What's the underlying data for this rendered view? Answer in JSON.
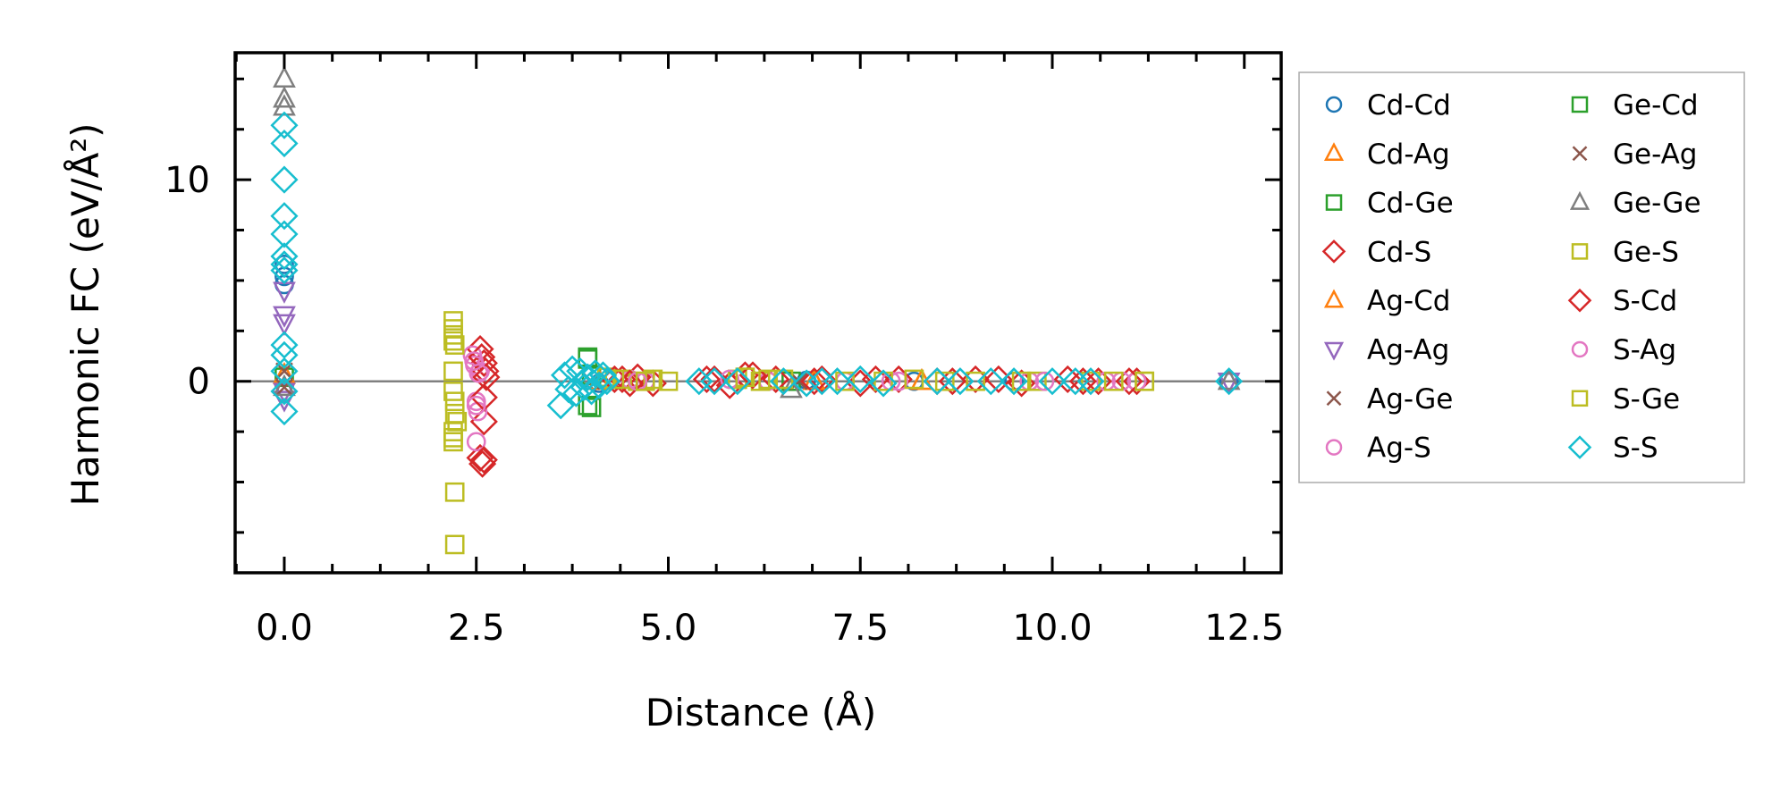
{
  "chart_data": {
    "type": "scatter",
    "title": "",
    "xlabel": "Distance (Å)",
    "ylabel": "Harmonic FC (eV/Å²)",
    "xlim": [
      -0.64,
      12.98
    ],
    "ylim": [
      -9.5,
      16.3
    ],
    "xticks": [
      0.0,
      2.5,
      5.0,
      7.5,
      10.0,
      12.5
    ],
    "xtick_labels": [
      "0.0",
      "2.5",
      "5.0",
      "7.5",
      "10.0",
      "12.5"
    ],
    "yticks": [
      0,
      10
    ],
    "ytick_labels": [
      "0",
      "10"
    ],
    "grid": false,
    "zero_line": true,
    "legend_placement": "outside-right",
    "series": [
      {
        "name": "Cd-Cd",
        "marker": "circle",
        "color": "#1f77b4",
        "x": [
          0,
          0,
          0,
          4.1,
          6.8,
          8.2,
          9.5,
          12.3
        ],
        "y": [
          5.8,
          5.2,
          4.8,
          -0.1,
          0.05,
          0,
          0,
          0
        ]
      },
      {
        "name": "Cd-Ag",
        "marker": "triangle-up",
        "color": "#ff7f0e",
        "x": [
          0,
          4.1,
          6.9,
          8.3
        ],
        "y": [
          0.3,
          0,
          0,
          0
        ]
      },
      {
        "name": "Cd-Ge",
        "marker": "square",
        "color": "#2ca02c",
        "x": [
          0,
          3.95,
          3.95,
          4.0,
          6.6
        ],
        "y": [
          0.2,
          1.2,
          -1.2,
          0.3,
          0
        ]
      },
      {
        "name": "Cd-S",
        "marker": "diamond",
        "color": "#d62728",
        "x": [
          2.55,
          2.55,
          2.58,
          2.6,
          2.6,
          2.62,
          4.4,
          4.6,
          4.8,
          5.5,
          5.8,
          6.0,
          6.4,
          7.0,
          7.5,
          8.0,
          8.5,
          9.0,
          9.6,
          10.2,
          10.6,
          11.1
        ],
        "y": [
          1.6,
          -3.8,
          -4.1,
          0.9,
          -2,
          0.5,
          0.1,
          0.2,
          -0.1,
          0.1,
          -0.2,
          0.3,
          0.1,
          0.1,
          -0.1,
          0.1,
          0,
          0.1,
          -0.1,
          0.1,
          0,
          0
        ]
      },
      {
        "name": "Ag-Cd",
        "marker": "triangle-up",
        "color": "#ff7f0e",
        "x": [
          0,
          4.1,
          6.9,
          8.3
        ],
        "y": [
          0.3,
          0,
          0,
          0
        ]
      },
      {
        "name": "Ag-Ag",
        "marker": "triangle-down",
        "color": "#9467bd",
        "x": [
          0,
          0,
          0,
          0,
          0,
          12.3
        ],
        "y": [
          4.5,
          3.3,
          2.9,
          -0.5,
          -0.9,
          0
        ]
      },
      {
        "name": "Ag-Ge",
        "marker": "x",
        "color": "#8c564b",
        "x": [
          0,
          4.0,
          6.7
        ],
        "y": [
          -0.3,
          0,
          0
        ]
      },
      {
        "name": "Ag-S",
        "marker": "circle",
        "color": "#e377c2",
        "x": [
          2.45,
          2.48,
          2.5,
          2.5,
          2.52,
          2.55,
          4.5,
          4.7,
          6.3,
          7.3,
          8.0,
          9.7,
          10.7,
          11.1
        ],
        "y": [
          1.3,
          0.8,
          -1,
          -3,
          -1.5,
          0.5,
          0.1,
          0,
          0,
          0,
          0,
          0,
          0,
          0
        ]
      },
      {
        "name": "Ge-Cd",
        "marker": "square",
        "color": "#2ca02c",
        "x": [
          3.95,
          4.0
        ],
        "y": [
          1.1,
          -1.3
        ]
      },
      {
        "name": "Ge-Ag",
        "marker": "x",
        "color": "#8c564b",
        "x": [
          0,
          6.7
        ],
        "y": [
          0.5,
          0
        ]
      },
      {
        "name": "Ge-Ge",
        "marker": "triangle-up",
        "color": "#7f7f7f",
        "x": [
          0,
          0,
          0,
          0,
          6.6,
          12.3
        ],
        "y": [
          15,
          14,
          13.6,
          -0.3,
          -0.4,
          0
        ]
      },
      {
        "name": "Ge-S",
        "marker": "square",
        "color": "#bcbd22",
        "x": [
          2.2,
          2.2,
          2.2,
          2.22,
          2.2,
          2.2,
          2.22,
          2.25,
          2.2,
          2.2,
          2.22,
          2.22,
          4.2,
          4.4,
          4.6,
          4.8,
          5.0,
          5.9,
          6.2,
          6.5,
          7.3,
          8.2,
          9.0,
          9.8,
          10.5,
          11.2
        ],
        "y": [
          3,
          2.6,
          2.3,
          1.8,
          0.5,
          -0.5,
          -1,
          -2,
          -2.5,
          -3,
          -5.5,
          -8.1,
          0.2,
          0.1,
          0,
          0.1,
          0,
          0.1,
          0,
          0.1,
          0,
          0.1,
          0,
          0,
          0,
          0
        ]
      },
      {
        "name": "S-Cd",
        "marker": "diamond",
        "color": "#d62728",
        "x": [
          2.57,
          2.6,
          2.6,
          2.63,
          4.3,
          4.5,
          5.6,
          6.1,
          6.9,
          7.7,
          8.7,
          9.3,
          10.4,
          11.0
        ],
        "y": [
          1.2,
          -0.8,
          -3.9,
          0.2,
          0.1,
          -0.1,
          0.1,
          0.3,
          0,
          0.1,
          0,
          0.1,
          0,
          0
        ]
      },
      {
        "name": "S-Ag",
        "marker": "circle",
        "color": "#e377c2",
        "x": [
          2.47,
          2.5,
          2.53,
          4.6,
          5.8,
          7.9,
          9.9,
          10.9
        ],
        "y": [
          1.0,
          -1.2,
          0.4,
          0,
          0.1,
          0,
          0,
          0
        ]
      },
      {
        "name": "S-Ge",
        "marker": "square",
        "color": "#bcbd22",
        "x": [
          2.2,
          2.22,
          2.2,
          4.3,
          4.7,
          6.0,
          6.3,
          7.8,
          8.6,
          9.6,
          10.8,
          11.2
        ],
        "y": [
          2.0,
          -1.6,
          -2.8,
          0.1,
          0,
          0.2,
          0.1,
          0,
          0,
          0,
          0,
          0
        ]
      },
      {
        "name": "S-S",
        "marker": "diamond",
        "color": "#17becf",
        "x": [
          0,
          0,
          0,
          0,
          0,
          0,
          0,
          0,
          0,
          0,
          0,
          0,
          0,
          3.6,
          3.65,
          3.7,
          3.75,
          3.8,
          3.85,
          3.9,
          3.95,
          4.0,
          4.05,
          4.1,
          4.15,
          4.2,
          5.4,
          5.6,
          5.9,
          6.5,
          6.8,
          7.0,
          7.2,
          7.5,
          7.8,
          8.5,
          8.8,
          9.2,
          9.5,
          10.0,
          10.3,
          10.5,
          12.3
        ],
        "y": [
          12.7,
          11.8,
          10,
          8.2,
          7.3,
          6.2,
          5.8,
          5.5,
          1.8,
          1.3,
          0.5,
          -0.5,
          -1.5,
          -1.2,
          0.3,
          -0.4,
          0.6,
          -0.6,
          0.5,
          -0.3,
          0.2,
          -0.5,
          0.4,
          -0.2,
          0.3,
          0,
          0,
          0,
          0,
          0,
          -0.1,
          0,
          0,
          0.1,
          -0.1,
          0,
          0,
          0,
          0,
          0,
          0,
          0,
          0
        ]
      }
    ]
  }
}
